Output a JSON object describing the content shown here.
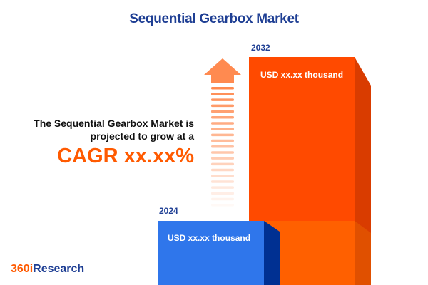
{
  "title": "Sequential Gearbox Market",
  "description_line1": "The Sequential Gearbox Market is",
  "description_line2": "projected to grow at a",
  "cagr": "CAGR xx.xx%",
  "bars": [
    {
      "year": "2024",
      "value_label": "USD xx.xx thousand",
      "color": "#2f76eb",
      "side_color": "#003092"
    },
    {
      "year": "2032",
      "value_label": "USD xx.xx thousand",
      "color": "#ff4a00",
      "side_color": "#d93c00"
    }
  ],
  "arrow_icon": "growth-arrow-up-icon",
  "arrow_color": "#ff8a50",
  "logo": {
    "part1": "360i",
    "part2": "Research"
  }
}
